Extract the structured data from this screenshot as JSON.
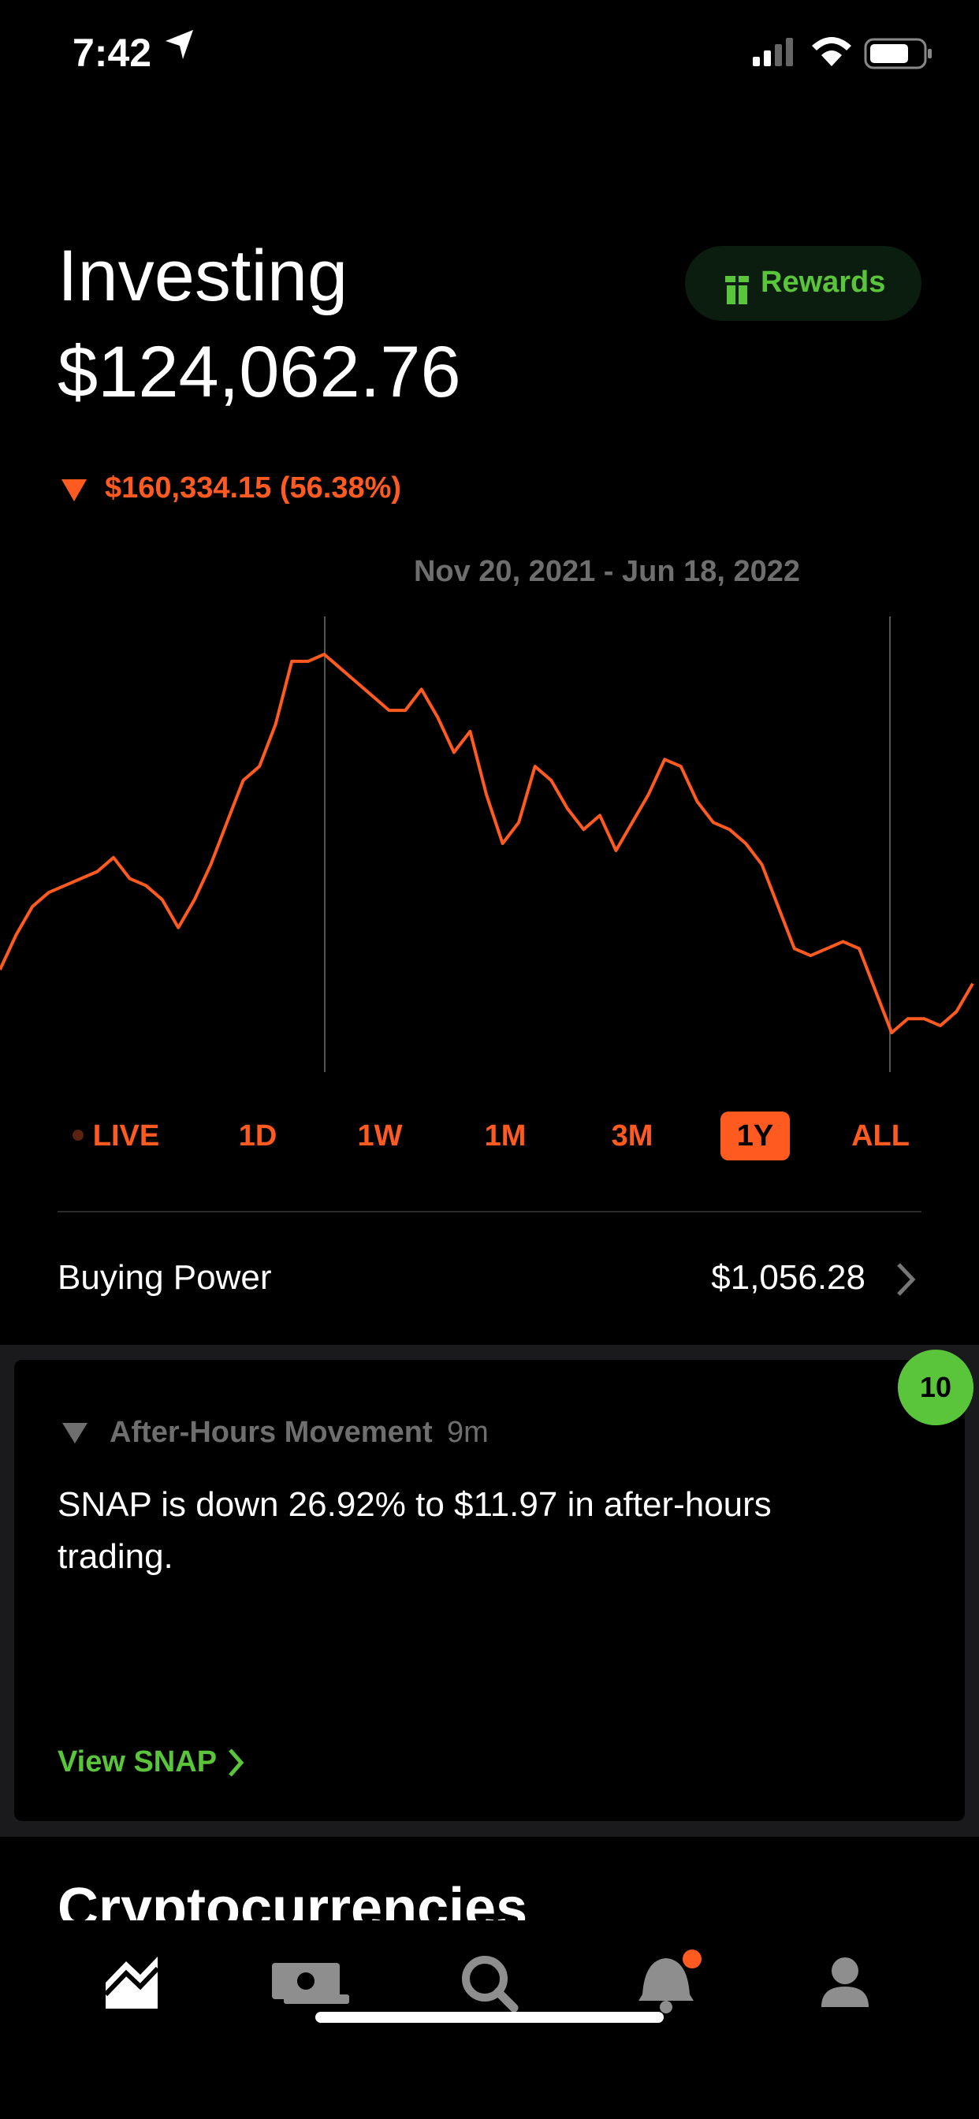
{
  "status": {
    "time": "7:42"
  },
  "header": {
    "title": "Investing",
    "balance": "$124,062.76",
    "rewards": "Rewards",
    "change": "$160,334.15 (56.38%)"
  },
  "chart_data": {
    "type": "line",
    "subtitle": "Nov 20, 2021 - Jun 18, 2022",
    "color": "#ff5a1f",
    "values": [
      85,
      110,
      130,
      140,
      145,
      150,
      155,
      165,
      150,
      145,
      135,
      115,
      135,
      160,
      190,
      220,
      230,
      260,
      305,
      305,
      310,
      300,
      290,
      280,
      270,
      270,
      285,
      265,
      240,
      255,
      210,
      175,
      190,
      230,
      220,
      200,
      185,
      195,
      170,
      190,
      210,
      235,
      230,
      205,
      190,
      185,
      175,
      160,
      130,
      100,
      95,
      100,
      105,
      100,
      70,
      40,
      50,
      50,
      45,
      55,
      75
    ]
  },
  "ranges": [
    "LIVE",
    "1D",
    "1W",
    "1M",
    "3M",
    "1Y",
    "ALL"
  ],
  "selected_range": "1Y",
  "buying_power": {
    "label": "Buying Power",
    "value": "$1,056.28"
  },
  "card": {
    "badge": "10",
    "title": "After-Hours Movement",
    "age": "9m",
    "body": "SNAP is down 26.92% to $11.97 in after-hours trading.",
    "link": "View SNAP"
  },
  "section": {
    "title": "Cryptocurrencies"
  }
}
